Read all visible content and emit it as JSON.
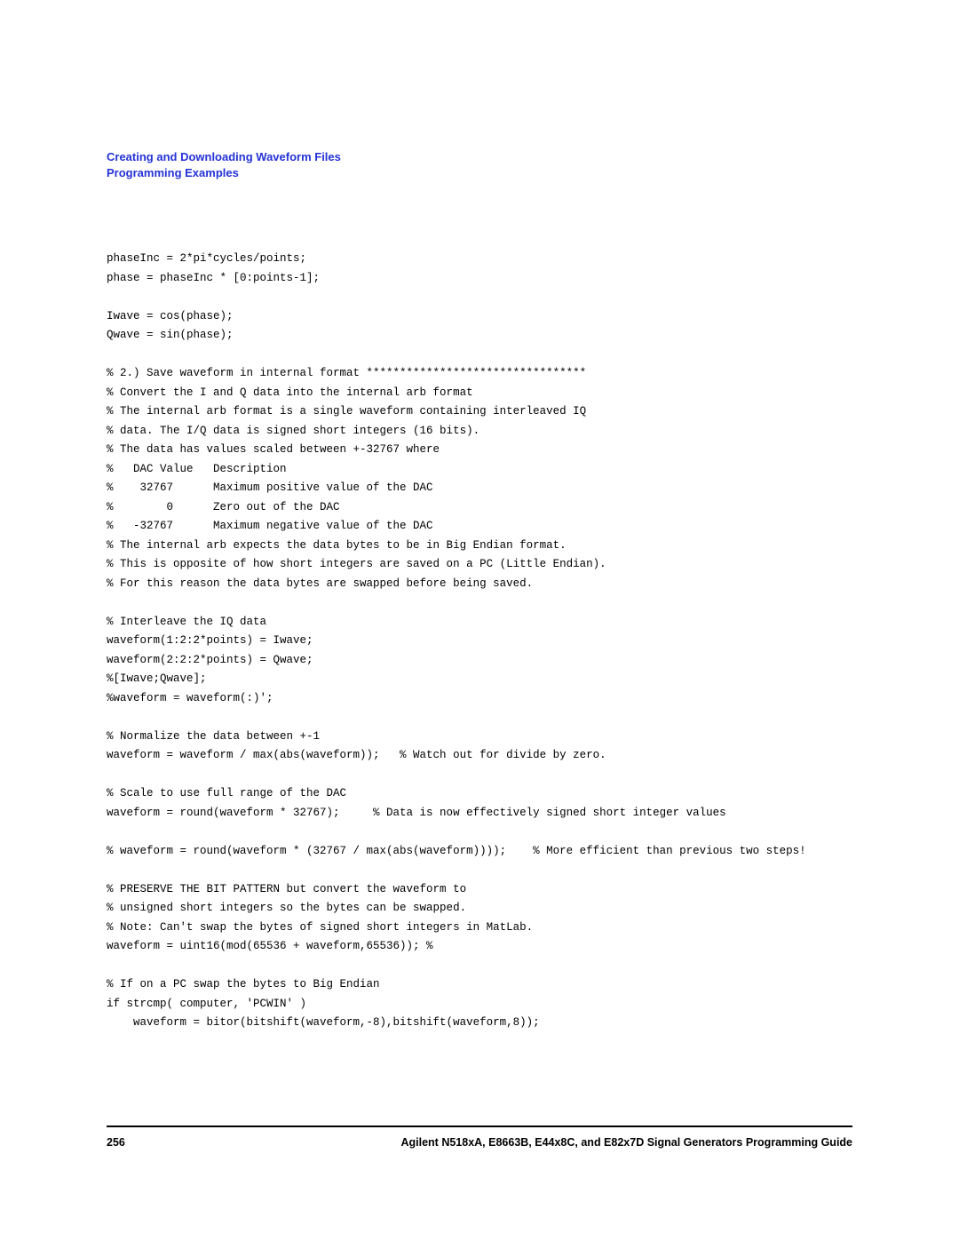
{
  "header": {
    "line1": "Creating and Downloading Waveform Files",
    "line2": "Programming Examples"
  },
  "code_lines": [
    "phaseInc = 2*pi*cycles/points;",
    "phase = phaseInc * [0:points-1];",
    "",
    "Iwave = cos(phase);",
    "Qwave = sin(phase);",
    "",
    "% 2.) Save waveform in internal format *********************************",
    "% Convert the I and Q data into the internal arb format",
    "% The internal arb format is a single waveform containing interleaved IQ",
    "% data. The I/Q data is signed short integers (16 bits).",
    "% The data has values scaled between +-32767 where",
    "%   DAC Value   Description",
    "%    32767      Maximum positive value of the DAC",
    "%        0      Zero out of the DAC",
    "%   -32767      Maximum negative value of the DAC",
    "% The internal arb expects the data bytes to be in Big Endian format.",
    "% This is opposite of how short integers are saved on a PC (Little Endian).",
    "% For this reason the data bytes are swapped before being saved.",
    "",
    "% Interleave the IQ data",
    "waveform(1:2:2*points) = Iwave;",
    "waveform(2:2:2*points) = Qwave;",
    "%[Iwave;Qwave];",
    "%waveform = waveform(:)';",
    "",
    "% Normalize the data between +-1",
    "waveform = waveform / max(abs(waveform));   % Watch out for divide by zero.",
    "",
    "% Scale to use full range of the DAC",
    "waveform = round(waveform * 32767);     % Data is now effectively signed short integer values",
    "",
    "% waveform = round(waveform * (32767 / max(abs(waveform))));    % More efficient than previous two steps!",
    "",
    "% PRESERVE THE BIT PATTERN but convert the waveform to",
    "% unsigned short integers so the bytes can be swapped.",
    "% Note: Can't swap the bytes of signed short integers in MatLab.",
    "waveform = uint16(mod(65536 + waveform,65536)); %",
    "",
    "% If on a PC swap the bytes to Big Endian",
    "if strcmp( computer, 'PCWIN' )",
    "    waveform = bitor(bitshift(waveform,-8),bitshift(waveform,8));"
  ],
  "footer": {
    "page_number": "256",
    "guide_title": "Agilent N518xA, E8663B, E44x8C, and E82x7D Signal Generators Programming Guide"
  },
  "styles": {
    "header_color": "#2432d6",
    "text_color": "#000000",
    "background_color": "#ffffff",
    "code_font": "Courier New",
    "body_font": "Arial"
  }
}
